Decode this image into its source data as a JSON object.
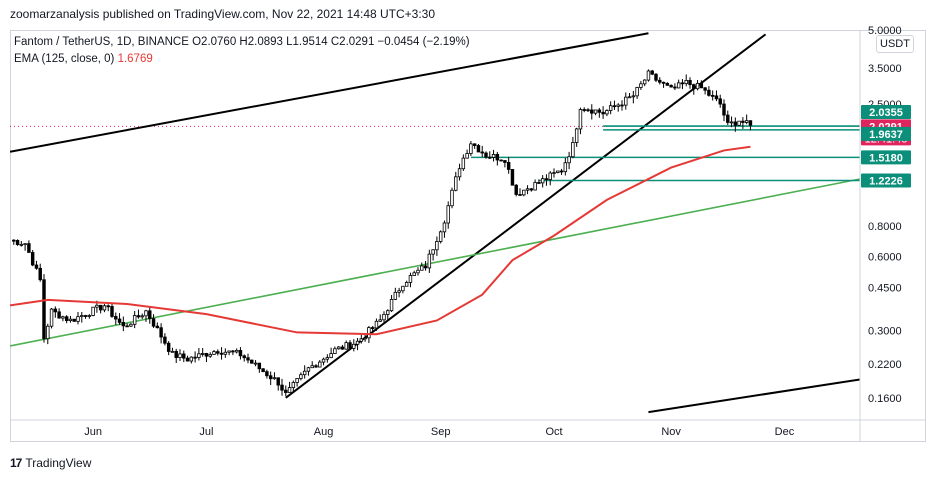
{
  "header": {
    "published": "zoomarzanalysis published on TradingView.com, Nov 22, 2021 14:48 UTC+3:30"
  },
  "legend": {
    "symbol": "Fantom / TetherUS, 1D, BINANCE",
    "ohlc": "O2.0760 H2.0893 L1.9514 C2.0291 −0.0454 (−2.19%)",
    "ema_label": "EMA (125, close, 0)",
    "ema_value": "1.6769"
  },
  "currency_label": "USDT",
  "footer": {
    "logo_mark": "17",
    "brand": "TradingView"
  },
  "colors": {
    "up": "#ffffff",
    "down": "#000000",
    "ema": "#e53935",
    "trend_black": "#000000",
    "trend_green": "#4caf50",
    "level_teal": "#0b8f7a",
    "price_badge": "#e0245e"
  },
  "chart_data": {
    "type": "candlestick",
    "scale": "log",
    "ylim": [
      0.13,
      5.0
    ],
    "y_ticks": [
      "5.0000",
      "3.5000",
      "2.5000",
      "0.8000",
      "0.6000",
      "0.4500",
      "0.3000",
      "0.2200",
      "0.1600"
    ],
    "x_ticks": [
      {
        "label": "Jun",
        "date": "2021-06-01"
      },
      {
        "label": "Jul",
        "date": "2021-07-01"
      },
      {
        "label": "Aug",
        "date": "2021-08-01"
      },
      {
        "label": "Sep",
        "date": "2021-09-01"
      },
      {
        "label": "Oct",
        "date": "2021-10-01"
      },
      {
        "label": "Nov",
        "date": "2021-11-01"
      },
      {
        "label": "Dec",
        "date": "2021-12-01"
      }
    ],
    "x_range": [
      "2021-05-10",
      "2021-12-21"
    ],
    "price_anchors": [
      [
        "2021-05-10",
        0.7
      ],
      [
        "2021-05-14",
        0.68
      ],
      [
        "2021-05-18",
        0.48
      ],
      [
        "2021-05-19",
        0.28
      ],
      [
        "2021-05-21",
        0.36
      ],
      [
        "2021-05-26",
        0.33
      ],
      [
        "2021-06-04",
        0.38
      ],
      [
        "2021-06-09",
        0.31
      ],
      [
        "2021-06-15",
        0.36
      ],
      [
        "2021-06-22",
        0.24
      ],
      [
        "2021-06-26",
        0.23
      ],
      [
        "2021-07-04",
        0.25
      ],
      [
        "2021-07-10",
        0.24
      ],
      [
        "2021-07-20",
        0.185
      ],
      [
        "2021-07-22",
        0.165
      ],
      [
        "2021-07-28",
        0.21
      ],
      [
        "2021-08-04",
        0.25
      ],
      [
        "2021-08-10",
        0.27
      ],
      [
        "2021-08-16",
        0.33
      ],
      [
        "2021-08-22",
        0.47
      ],
      [
        "2021-08-28",
        0.55
      ],
      [
        "2021-09-02",
        0.85
      ],
      [
        "2021-09-06",
        1.4
      ],
      [
        "2021-09-09",
        1.75
      ],
      [
        "2021-09-13",
        1.55
      ],
      [
        "2021-09-18",
        1.5
      ],
      [
        "2021-09-21",
        1.08
      ],
      [
        "2021-09-27",
        1.2
      ],
      [
        "2021-10-03",
        1.35
      ],
      [
        "2021-10-06",
        1.7
      ],
      [
        "2021-10-08",
        2.45
      ],
      [
        "2021-10-14",
        2.3
      ],
      [
        "2021-10-22",
        2.7
      ],
      [
        "2021-10-26",
        3.3
      ],
      [
        "2021-11-01",
        2.85
      ],
      [
        "2021-11-05",
        3.05
      ],
      [
        "2021-11-09",
        2.9
      ],
      [
        "2021-11-14",
        2.5
      ],
      [
        "2021-11-16",
        2.05
      ],
      [
        "2021-11-19",
        2.15
      ],
      [
        "2021-11-22",
        2.03
      ]
    ],
    "ema": {
      "name": "EMA (125, close, 0)",
      "points": [
        [
          "2021-05-10",
          0.38
        ],
        [
          "2021-05-20",
          0.4
        ],
        [
          "2021-06-10",
          0.385
        ],
        [
          "2021-07-01",
          0.35
        ],
        [
          "2021-07-25",
          0.295
        ],
        [
          "2021-08-15",
          0.29
        ],
        [
          "2021-08-31",
          0.33
        ],
        [
          "2021-09-12",
          0.42
        ],
        [
          "2021-09-20",
          0.58
        ],
        [
          "2021-10-01",
          0.73
        ],
        [
          "2021-10-15",
          1.02
        ],
        [
          "2021-11-01",
          1.38
        ],
        [
          "2021-11-15",
          1.62
        ],
        [
          "2021-11-22",
          1.6769
        ]
      ]
    },
    "trendlines": [
      {
        "name": "upper-channel",
        "color": "black",
        "points": [
          [
            "2021-05-10",
            1.6
          ],
          [
            "2021-10-26",
            4.85
          ]
        ]
      },
      {
        "name": "lower-channel",
        "color": "black",
        "points": [
          [
            "2021-10-26",
            0.14
          ],
          [
            "2021-12-21",
            0.19
          ]
        ]
      },
      {
        "name": "rising-support",
        "color": "black",
        "points": [
          [
            "2021-07-22",
            0.16
          ],
          [
            "2021-11-26",
            4.8
          ]
        ]
      },
      {
        "name": "long-support",
        "color": "green",
        "points": [
          [
            "2021-05-10",
            0.26
          ],
          [
            "2021-12-21",
            1.24
          ]
        ]
      }
    ],
    "levels": [
      {
        "value": 2.0355,
        "from": "2021-10-14",
        "to": "2021-12-21"
      },
      {
        "value": 1.9637,
        "from": "2021-10-14",
        "to": "2021-12-21"
      },
      {
        "value": 1.518,
        "from": "2021-09-09",
        "to": "2021-12-21"
      },
      {
        "value": 1.2226,
        "from": "2021-09-27",
        "to": "2021-12-21"
      }
    ],
    "last_price": {
      "value": 2.0291,
      "countdown": "12:41:48"
    },
    "price_labels": [
      {
        "text": "2.0355",
        "value": 2.0355,
        "kind": "level"
      },
      {
        "text": "2.0291",
        "value": 2.0291,
        "kind": "price"
      },
      {
        "text": "1.9637",
        "value": 1.9637,
        "kind": "level"
      },
      {
        "text": "1.5180",
        "value": 1.518,
        "kind": "level"
      },
      {
        "text": "1.2226",
        "value": 1.2226,
        "kind": "level"
      }
    ]
  }
}
